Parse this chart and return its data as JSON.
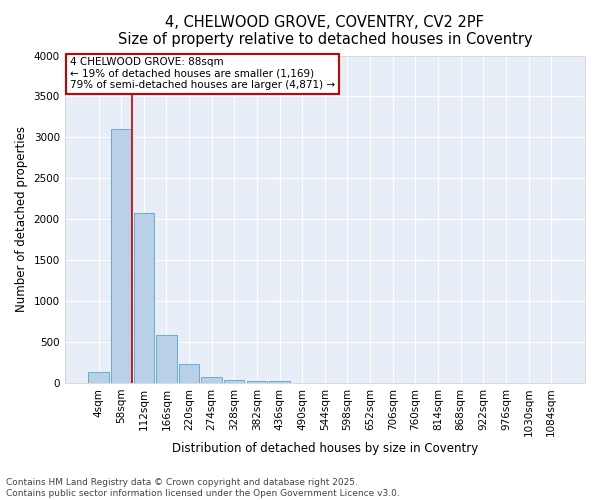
{
  "title_line1": "4, CHELWOOD GROVE, COVENTRY, CV2 2PF",
  "title_line2": "Size of property relative to detached houses in Coventry",
  "xlabel": "Distribution of detached houses by size in Coventry",
  "ylabel": "Number of detached properties",
  "bar_color": "#b8d0e8",
  "bar_edge_color": "#6aaad4",
  "background_color": "#e8eef8",
  "categories": [
    "4sqm",
    "58sqm",
    "112sqm",
    "166sqm",
    "220sqm",
    "274sqm",
    "328sqm",
    "382sqm",
    "436sqm",
    "490sqm",
    "544sqm",
    "598sqm",
    "652sqm",
    "706sqm",
    "760sqm",
    "814sqm",
    "868sqm",
    "922sqm",
    "976sqm",
    "1030sqm",
    "1084sqm"
  ],
  "values": [
    130,
    3100,
    2080,
    580,
    230,
    75,
    40,
    30,
    20,
    0,
    0,
    0,
    0,
    0,
    0,
    0,
    0,
    0,
    0,
    0,
    0
  ],
  "ylim": [
    0,
    4000
  ],
  "yticks": [
    0,
    500,
    1000,
    1500,
    2000,
    2500,
    3000,
    3500,
    4000
  ],
  "vline_x_index": 1.5,
  "vline_color": "#cc0000",
  "annotation_text": "4 CHELWOOD GROVE: 88sqm\n← 19% of detached houses are smaller (1,169)\n79% of semi-detached houses are larger (4,871) →",
  "annotation_box_facecolor": "#ffffff",
  "annotation_box_edgecolor": "#cc0000",
  "footnote_line1": "Contains HM Land Registry data © Crown copyright and database right 2025.",
  "footnote_line2": "Contains public sector information licensed under the Open Government Licence v3.0.",
  "title_fontsize": 10.5,
  "ylabel_fontsize": 8.5,
  "xlabel_fontsize": 8.5,
  "tick_fontsize": 7.5,
  "annotation_fontsize": 7.5,
  "footnote_fontsize": 6.5
}
